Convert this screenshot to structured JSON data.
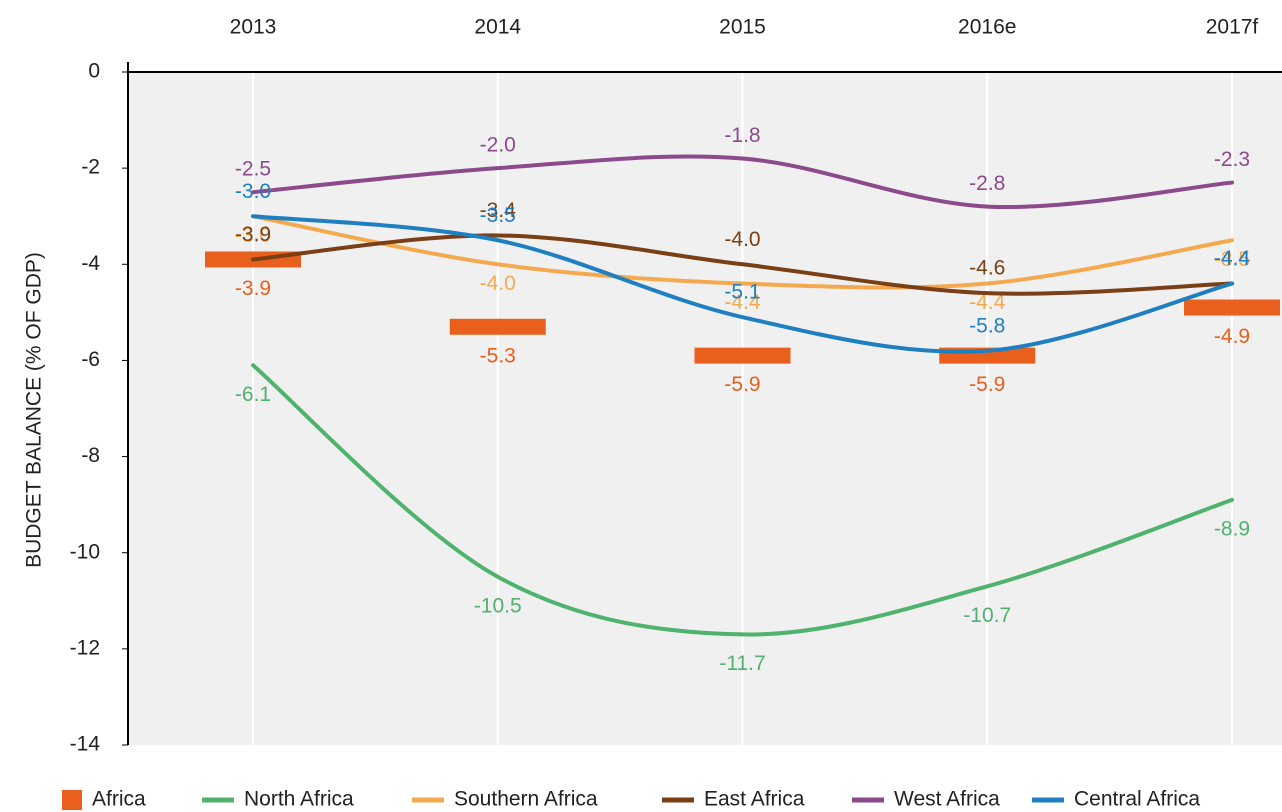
{
  "chart_data": {
    "type": "line",
    "y_label": "BUDGET BALANCE (%  OF GDP)",
    "categories": [
      "2013",
      "2014",
      "2015",
      "2016e",
      "2017f"
    ],
    "ylim": [
      -14,
      0
    ],
    "yticks": [
      0,
      -2,
      -4,
      -6,
      -8,
      -10,
      -12,
      -14
    ],
    "grid": true,
    "series": [
      {
        "name": "Africa",
        "kind": "bar",
        "color": "#e8601c",
        "values": [
          -3.9,
          -5.3,
          -5.9,
          -5.9,
          -4.9
        ],
        "value_labels": [
          "-3.9",
          "-5.3",
          "-5.9",
          "-5.9",
          "-4.9"
        ]
      },
      {
        "name": "North Africa",
        "color": "#4fb36e",
        "values": [
          -6.1,
          -10.5,
          -11.7,
          -10.7,
          -8.9
        ],
        "value_labels": [
          "-6.1",
          "-10.5",
          "-11.7",
          "-10.7",
          "-8.9"
        ]
      },
      {
        "name": "Southern Africa",
        "color": "#f5a94e",
        "values": [
          -3.0,
          -4.0,
          -4.4,
          -4.4,
          -3.5
        ],
        "value_labels": [
          "-3.0",
          "-4.0",
          "-4.4",
          "-4.4",
          "-3.5"
        ]
      },
      {
        "name": "East Africa",
        "color": "#7a3f14",
        "values": [
          -3.9,
          -3.4,
          -4.0,
          -4.6,
          -4.4
        ],
        "value_labels": [
          "-3.9",
          "-3.4",
          "-4.0",
          "-4.6",
          "-4.4"
        ]
      },
      {
        "name": "West  Africa",
        "color": "#8c4a8c",
        "values": [
          -2.5,
          -2.0,
          -1.8,
          -2.8,
          -2.3
        ],
        "value_labels": [
          "-2.5",
          "-2.0",
          "-1.8",
          "-2.8",
          "-2.3"
        ]
      },
      {
        "name": "Central Africa",
        "color": "#1f7fc0",
        "values": [
          -3.0,
          -3.5,
          -5.1,
          -5.8,
          -4.4
        ],
        "value_labels": [
          "-3.0",
          "-3.5",
          "-5.1",
          "-5.8",
          "-4.4"
        ]
      }
    ]
  }
}
